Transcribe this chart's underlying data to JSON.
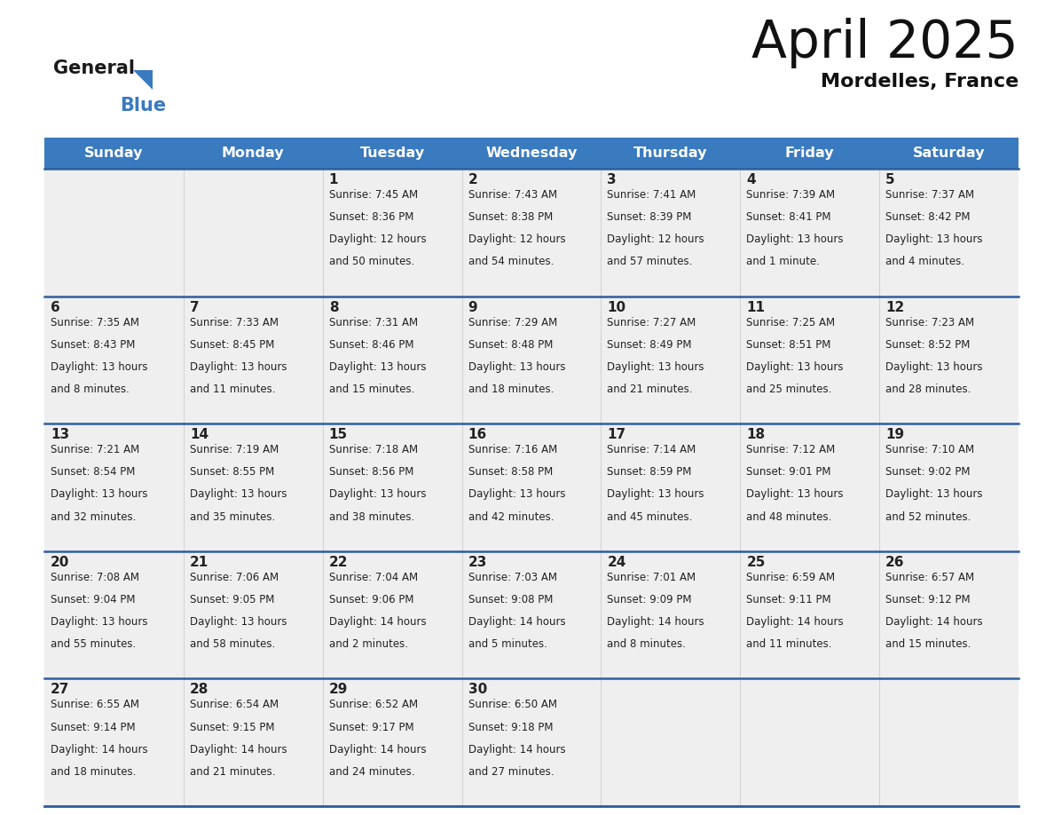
{
  "title": "April 2025",
  "subtitle": "Mordelles, France",
  "header_bg_color": "#3a7abf",
  "header_text_color": "#ffffff",
  "cell_bg_color": "#efefef",
  "cell_bg_empty": "#f5f5f5",
  "text_color": "#222222",
  "border_color": "#2e5f9e",
  "grid_color": "#cccccc",
  "days_of_week": [
    "Sunday",
    "Monday",
    "Tuesday",
    "Wednesday",
    "Thursday",
    "Friday",
    "Saturday"
  ],
  "weeks": [
    [
      {
        "day": "",
        "sunrise": "",
        "sunset": "",
        "daylight": ""
      },
      {
        "day": "",
        "sunrise": "",
        "sunset": "",
        "daylight": ""
      },
      {
        "day": "1",
        "sunrise": "7:45 AM",
        "sunset": "8:36 PM",
        "daylight": "12 hours\nand 50 minutes."
      },
      {
        "day": "2",
        "sunrise": "7:43 AM",
        "sunset": "8:38 PM",
        "daylight": "12 hours\nand 54 minutes."
      },
      {
        "day": "3",
        "sunrise": "7:41 AM",
        "sunset": "8:39 PM",
        "daylight": "12 hours\nand 57 minutes."
      },
      {
        "day": "4",
        "sunrise": "7:39 AM",
        "sunset": "8:41 PM",
        "daylight": "13 hours\nand 1 minute."
      },
      {
        "day": "5",
        "sunrise": "7:37 AM",
        "sunset": "8:42 PM",
        "daylight": "13 hours\nand 4 minutes."
      }
    ],
    [
      {
        "day": "6",
        "sunrise": "7:35 AM",
        "sunset": "8:43 PM",
        "daylight": "13 hours\nand 8 minutes."
      },
      {
        "day": "7",
        "sunrise": "7:33 AM",
        "sunset": "8:45 PM",
        "daylight": "13 hours\nand 11 minutes."
      },
      {
        "day": "8",
        "sunrise": "7:31 AM",
        "sunset": "8:46 PM",
        "daylight": "13 hours\nand 15 minutes."
      },
      {
        "day": "9",
        "sunrise": "7:29 AM",
        "sunset": "8:48 PM",
        "daylight": "13 hours\nand 18 minutes."
      },
      {
        "day": "10",
        "sunrise": "7:27 AM",
        "sunset": "8:49 PM",
        "daylight": "13 hours\nand 21 minutes."
      },
      {
        "day": "11",
        "sunrise": "7:25 AM",
        "sunset": "8:51 PM",
        "daylight": "13 hours\nand 25 minutes."
      },
      {
        "day": "12",
        "sunrise": "7:23 AM",
        "sunset": "8:52 PM",
        "daylight": "13 hours\nand 28 minutes."
      }
    ],
    [
      {
        "day": "13",
        "sunrise": "7:21 AM",
        "sunset": "8:54 PM",
        "daylight": "13 hours\nand 32 minutes."
      },
      {
        "day": "14",
        "sunrise": "7:19 AM",
        "sunset": "8:55 PM",
        "daylight": "13 hours\nand 35 minutes."
      },
      {
        "day": "15",
        "sunrise": "7:18 AM",
        "sunset": "8:56 PM",
        "daylight": "13 hours\nand 38 minutes."
      },
      {
        "day": "16",
        "sunrise": "7:16 AM",
        "sunset": "8:58 PM",
        "daylight": "13 hours\nand 42 minutes."
      },
      {
        "day": "17",
        "sunrise": "7:14 AM",
        "sunset": "8:59 PM",
        "daylight": "13 hours\nand 45 minutes."
      },
      {
        "day": "18",
        "sunrise": "7:12 AM",
        "sunset": "9:01 PM",
        "daylight": "13 hours\nand 48 minutes."
      },
      {
        "day": "19",
        "sunrise": "7:10 AM",
        "sunset": "9:02 PM",
        "daylight": "13 hours\nand 52 minutes."
      }
    ],
    [
      {
        "day": "20",
        "sunrise": "7:08 AM",
        "sunset": "9:04 PM",
        "daylight": "13 hours\nand 55 minutes."
      },
      {
        "day": "21",
        "sunrise": "7:06 AM",
        "sunset": "9:05 PM",
        "daylight": "13 hours\nand 58 minutes."
      },
      {
        "day": "22",
        "sunrise": "7:04 AM",
        "sunset": "9:06 PM",
        "daylight": "14 hours\nand 2 minutes."
      },
      {
        "day": "23",
        "sunrise": "7:03 AM",
        "sunset": "9:08 PM",
        "daylight": "14 hours\nand 5 minutes."
      },
      {
        "day": "24",
        "sunrise": "7:01 AM",
        "sunset": "9:09 PM",
        "daylight": "14 hours\nand 8 minutes."
      },
      {
        "day": "25",
        "sunrise": "6:59 AM",
        "sunset": "9:11 PM",
        "daylight": "14 hours\nand 11 minutes."
      },
      {
        "day": "26",
        "sunrise": "6:57 AM",
        "sunset": "9:12 PM",
        "daylight": "14 hours\nand 15 minutes."
      }
    ],
    [
      {
        "day": "27",
        "sunrise": "6:55 AM",
        "sunset": "9:14 PM",
        "daylight": "14 hours\nand 18 minutes."
      },
      {
        "day": "28",
        "sunrise": "6:54 AM",
        "sunset": "9:15 PM",
        "daylight": "14 hours\nand 21 minutes."
      },
      {
        "day": "29",
        "sunrise": "6:52 AM",
        "sunset": "9:17 PM",
        "daylight": "14 hours\nand 24 minutes."
      },
      {
        "day": "30",
        "sunrise": "6:50 AM",
        "sunset": "9:18 PM",
        "daylight": "14 hours\nand 27 minutes."
      },
      {
        "day": "",
        "sunrise": "",
        "sunset": "",
        "daylight": ""
      },
      {
        "day": "",
        "sunrise": "",
        "sunset": "",
        "daylight": ""
      },
      {
        "day": "",
        "sunrise": "",
        "sunset": "",
        "daylight": ""
      }
    ]
  ]
}
